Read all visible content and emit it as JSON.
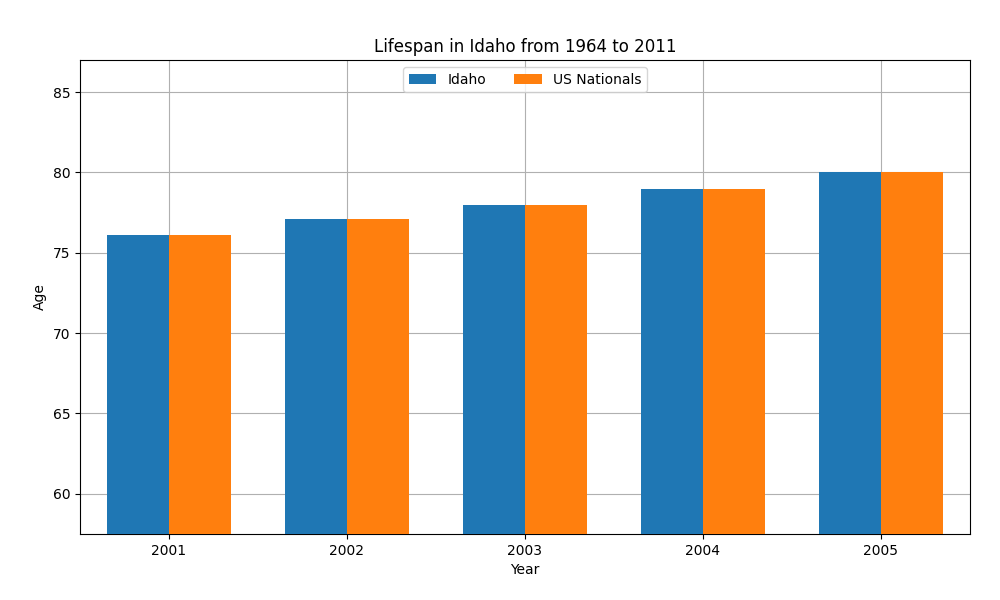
{
  "chart_data": {
    "type": "bar",
    "title": "Lifespan in Idaho from 1964 to 2011",
    "x_label": "Year",
    "y_label": "Age",
    "categories": [
      "2001",
      "2002",
      "2003",
      "2004",
      "2005"
    ],
    "series": [
      {
        "name": "Idaho",
        "values": [
          76.1,
          77.1,
          78.0,
          79.0,
          80.0
        ]
      },
      {
        "name": "US Nationals",
        "values": [
          76.1,
          77.1,
          78.0,
          79.0,
          80.0
        ]
      }
    ],
    "ylim": [
      57.5,
      87
    ],
    "yticks": [
      60,
      65,
      70,
      75,
      80,
      85
    ],
    "grid": true,
    "legend": "upper center"
  }
}
